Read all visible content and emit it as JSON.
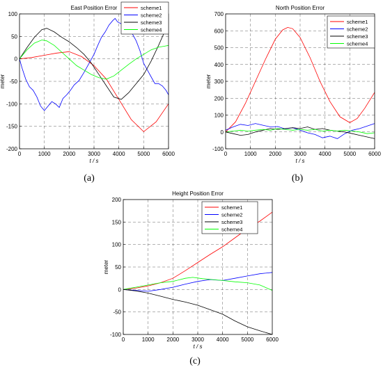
{
  "chart_data": [
    {
      "panel": "(a)",
      "type": "line",
      "title": "East Position Error",
      "xlabel": "t / s",
      "ylabel": "meter",
      "xlim": [
        0,
        6000
      ],
      "ylim": [
        -200,
        100
      ],
      "xticks": [
        0,
        1000,
        2000,
        3000,
        4000,
        5000,
        6000
      ],
      "yticks": [
        -200,
        -150,
        -100,
        -50,
        0,
        50,
        100
      ],
      "grid": true,
      "legend": "top-right",
      "series": [
        {
          "name": "scheme1",
          "color": "#ff0000",
          "x": [
            0,
            500,
            1000,
            1500,
            2000,
            2500,
            3000,
            3500,
            4000,
            4500,
            5000,
            5500,
            6000
          ],
          "y": [
            0,
            3,
            8,
            13,
            16,
            5,
            -15,
            -45,
            -90,
            -135,
            -162,
            -140,
            -100
          ]
        },
        {
          "name": "scheme2",
          "color": "#0000ff",
          "x": [
            0,
            100,
            250,
            400,
            550,
            700,
            850,
            1000,
            1150,
            1300,
            1450,
            1600,
            1750,
            1900,
            2050,
            2200,
            2400,
            2600,
            2800,
            3000,
            3150,
            3300,
            3450,
            3600,
            3750,
            3850,
            3950,
            4100,
            4250,
            4400,
            4550,
            4700,
            4850,
            5000,
            5150,
            5300,
            5450,
            5600,
            5750,
            5900,
            6000
          ],
          "y": [
            0,
            -20,
            -45,
            -62,
            -70,
            -85,
            -105,
            -115,
            -105,
            -95,
            -100,
            -108,
            -88,
            -80,
            -70,
            -58,
            -48,
            -30,
            -10,
            10,
            30,
            48,
            60,
            75,
            85,
            90,
            82,
            78,
            75,
            70,
            55,
            40,
            18,
            -10,
            -25,
            -40,
            -55,
            -55,
            -60,
            -70,
            -80
          ]
        },
        {
          "name": "scheme3",
          "color": "#000000",
          "x": [
            0,
            300,
            600,
            900,
            1100,
            1400,
            1700,
            2000,
            2300,
            2600,
            2900,
            3200,
            3500,
            3800,
            4100,
            4400,
            4700,
            5000,
            5300,
            5600,
            5800,
            6000
          ],
          "y": [
            0,
            25,
            48,
            65,
            68,
            60,
            48,
            38,
            25,
            10,
            -10,
            -35,
            -60,
            -85,
            -90,
            -75,
            -55,
            -35,
            -5,
            30,
            55,
            72
          ]
        },
        {
          "name": "scheme4",
          "color": "#00ff00",
          "x": [
            0,
            300,
            600,
            900,
            1100,
            1400,
            1700,
            2000,
            2300,
            2600,
            2900,
            3200,
            3500,
            3800,
            4100,
            4400,
            4700,
            5000,
            5300,
            5600,
            5800,
            6000
          ],
          "y": [
            0,
            20,
            35,
            42,
            40,
            30,
            15,
            0,
            -15,
            -25,
            -35,
            -42,
            -45,
            -38,
            -25,
            -12,
            0,
            10,
            20,
            26,
            28,
            30
          ]
        }
      ]
    },
    {
      "panel": "(b)",
      "type": "line",
      "title": "North Position Error",
      "xlabel": "t / s",
      "ylabel": "meter",
      "xlim": [
        0,
        6000
      ],
      "ylim": [
        -100,
        700
      ],
      "xticks": [
        0,
        1000,
        2000,
        3000,
        4000,
        5000,
        6000
      ],
      "yticks": [
        -100,
        0,
        100,
        200,
        300,
        400,
        500,
        600,
        700
      ],
      "grid": true,
      "legend": "top-right",
      "series": [
        {
          "name": "scheme1",
          "color": "#ff0000",
          "x": [
            0,
            400,
            800,
            1200,
            1600,
            2000,
            2300,
            2500,
            2700,
            3000,
            3400,
            3800,
            4200,
            4600,
            5000,
            5300,
            5600,
            6000
          ],
          "y": [
            0,
            60,
            170,
            300,
            430,
            550,
            605,
            620,
            612,
            560,
            440,
            300,
            180,
            90,
            55,
            80,
            140,
            235
          ]
        },
        {
          "name": "scheme2",
          "color": "#0000ff",
          "x": [
            0,
            300,
            600,
            900,
            1200,
            1500,
            1800,
            2100,
            2400,
            2700,
            3000,
            3300,
            3600,
            3900,
            4200,
            4500,
            4800,
            5100,
            5400,
            5700,
            6000
          ],
          "y": [
            10,
            30,
            45,
            38,
            50,
            40,
            30,
            32,
            18,
            25,
            10,
            -5,
            -15,
            -35,
            -25,
            -40,
            -10,
            10,
            20,
            35,
            50
          ]
        },
        {
          "name": "scheme3",
          "color": "#000000",
          "x": [
            0,
            300,
            600,
            900,
            1200,
            1500,
            1800,
            2100,
            2400,
            2700,
            3000,
            3300,
            3600,
            3900,
            4200,
            4500,
            4800,
            5100,
            5400,
            5700,
            6000
          ],
          "y": [
            0,
            -10,
            -20,
            -15,
            0,
            10,
            20,
            15,
            20,
            25,
            20,
            30,
            15,
            20,
            10,
            5,
            0,
            -10,
            -20,
            -30,
            -40
          ]
        },
        {
          "name": "scheme4",
          "color": "#00ff00",
          "x": [
            0,
            300,
            600,
            900,
            1200,
            1500,
            1800,
            2100,
            2400,
            2700,
            3000,
            3300,
            3600,
            3900,
            4200,
            4500,
            4800,
            5100,
            5400,
            5700,
            6000
          ],
          "y": [
            0,
            5,
            10,
            5,
            10,
            15,
            10,
            20,
            15,
            10,
            15,
            10,
            15,
            5,
            10,
            5,
            10,
            5,
            0,
            -10,
            -5
          ]
        }
      ]
    },
    {
      "panel": "(c)",
      "type": "line",
      "title": "Height Position Error",
      "xlabel": "t / s",
      "ylabel": "meter",
      "xlim": [
        0,
        6000
      ],
      "ylim": [
        -100,
        200
      ],
      "xticks": [
        0,
        1000,
        2000,
        3000,
        4000,
        5000,
        6000
      ],
      "yticks": [
        -100,
        -50,
        0,
        50,
        100,
        150,
        200
      ],
      "grid": true,
      "legend": "top-right",
      "series": [
        {
          "name": "scheme1",
          "color": "#ff0000",
          "x": [
            0,
            500,
            1000,
            1500,
            2000,
            2500,
            3000,
            3500,
            4000,
            4500,
            5000,
            5500,
            6000
          ],
          "y": [
            0,
            3,
            8,
            15,
            25,
            42,
            60,
            78,
            95,
            115,
            135,
            152,
            172
          ]
        },
        {
          "name": "scheme2",
          "color": "#0000ff",
          "x": [
            0,
            500,
            1000,
            1500,
            2000,
            2500,
            3000,
            3500,
            4000,
            4500,
            5000,
            5500,
            6000
          ],
          "y": [
            0,
            -2,
            -4,
            0,
            5,
            12,
            18,
            22,
            20,
            25,
            30,
            35,
            38
          ]
        },
        {
          "name": "scheme3",
          "color": "#000000",
          "x": [
            0,
            500,
            1000,
            1500,
            2000,
            2500,
            3000,
            3500,
            4000,
            4500,
            5000,
            5500,
            6000
          ],
          "y": [
            0,
            -3,
            -8,
            -15,
            -22,
            -28,
            -35,
            -45,
            -55,
            -70,
            -83,
            -92,
            -100
          ]
        },
        {
          "name": "scheme4",
          "color": "#00ff00",
          "x": [
            0,
            500,
            1000,
            1500,
            2000,
            2500,
            2800,
            3200,
            3600,
            4000,
            4500,
            5000,
            5500,
            6000
          ],
          "y": [
            0,
            5,
            10,
            15,
            18,
            25,
            27,
            24,
            22,
            20,
            17,
            15,
            10,
            -2
          ]
        }
      ]
    }
  ]
}
